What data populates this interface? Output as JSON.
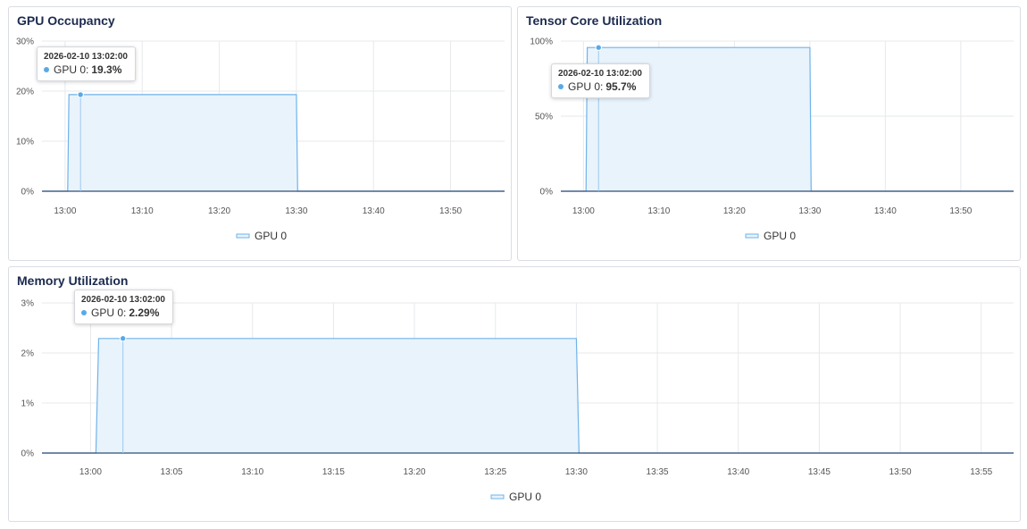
{
  "colors": {
    "series_line": "#6fb3ea",
    "series_fill": "#e9f3fc",
    "series_dot": "#5aa9e6",
    "baseline": "#2f4f7a",
    "grid": "#e6e8eb",
    "tick_text": "#555555"
  },
  "chart_data": [
    {
      "id": "gpu-occupancy",
      "type": "area",
      "title": "GPU Occupancy",
      "xlabel": "",
      "ylabel": "",
      "x_range": [
        "12:57",
        "13:57"
      ],
      "ylim": [
        0,
        30
      ],
      "y_ticks": [
        0,
        10,
        20,
        30
      ],
      "y_tick_labels": [
        "0%",
        "10%",
        "20%",
        "30%"
      ],
      "x_ticks": [
        "13:00",
        "13:10",
        "13:20",
        "13:30",
        "13:40",
        "13:50"
      ],
      "grid": true,
      "legend_position": "bottom",
      "series": [
        {
          "name": "GPU 0",
          "x": [
            "12:57",
            "13:00:20",
            "13:00:30",
            "13:30:00",
            "13:30:10",
            "13:57"
          ],
          "values": [
            0,
            0,
            19.3,
            19.3,
            0,
            0
          ]
        }
      ],
      "tooltip": {
        "time": "2026-02-10 13:02:00",
        "series": "GPU 0",
        "value_label": "19.3%",
        "x": "13:02:00",
        "y": 19.3
      }
    },
    {
      "id": "tensor-core-utilization",
      "type": "area",
      "title": "Tensor Core Utilization",
      "xlabel": "",
      "ylabel": "",
      "x_range": [
        "12:57",
        "13:57"
      ],
      "ylim": [
        0,
        100
      ],
      "y_ticks": [
        0,
        50,
        100
      ],
      "y_tick_labels": [
        "0%",
        "50%",
        "100%"
      ],
      "x_ticks": [
        "13:00",
        "13:10",
        "13:20",
        "13:30",
        "13:40",
        "13:50"
      ],
      "grid": true,
      "legend_position": "bottom",
      "series": [
        {
          "name": "GPU 0",
          "x": [
            "12:57",
            "13:00:20",
            "13:00:30",
            "13:30:00",
            "13:30:10",
            "13:57"
          ],
          "values": [
            0,
            0,
            95.7,
            95.7,
            0,
            0
          ]
        }
      ],
      "tooltip": {
        "time": "2026-02-10 13:02:00",
        "series": "GPU 0",
        "value_label": "95.7%",
        "x": "13:02:00",
        "y": 95.7
      }
    },
    {
      "id": "memory-utilization",
      "type": "area",
      "title": "Memory Utilization",
      "xlabel": "",
      "ylabel": "",
      "x_range": [
        "12:57",
        "13:57"
      ],
      "ylim": [
        0,
        3
      ],
      "y_ticks": [
        0,
        1,
        2,
        3
      ],
      "y_tick_labels": [
        "0%",
        "1%",
        "2%",
        "3%"
      ],
      "x_ticks": [
        "13:00",
        "13:05",
        "13:10",
        "13:15",
        "13:20",
        "13:25",
        "13:30",
        "13:35",
        "13:40",
        "13:45",
        "13:50",
        "13:55"
      ],
      "grid": true,
      "legend_position": "bottom",
      "series": [
        {
          "name": "GPU 0",
          "x": [
            "12:57",
            "13:00:20",
            "13:00:30",
            "13:30:00",
            "13:30:10",
            "13:57"
          ],
          "values": [
            0,
            0,
            2.29,
            2.29,
            0,
            0
          ]
        }
      ],
      "tooltip": {
        "time": "2026-02-10 13:02:00",
        "series": "GPU 0",
        "value_label": "2.29%",
        "x": "13:02:00",
        "y": 2.29
      }
    }
  ]
}
